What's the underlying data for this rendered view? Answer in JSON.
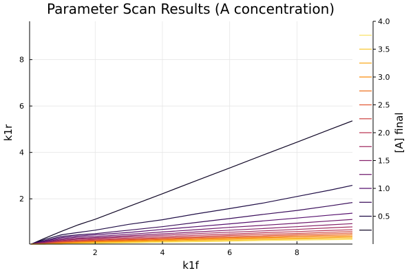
{
  "chart_data": {
    "type": "contour",
    "title": "Parameter Scan Results (A concentration)",
    "xlabel": "k1f",
    "ylabel": "k1r",
    "xlim": [
      0.05,
      9.65
    ],
    "ylim": [
      0.05,
      9.65
    ],
    "x_ticks": [
      2,
      4,
      6,
      8
    ],
    "y_ticks": [
      2,
      4,
      6,
      8
    ],
    "grid": true,
    "colorbar": {
      "label": "[A] final",
      "range": [
        0.0,
        4.0
      ],
      "ticks": [
        0.5,
        1.0,
        1.5,
        2.0,
        2.5,
        3.0,
        3.5,
        4.0
      ],
      "tick_labels": [
        "0.5",
        "1.0",
        "1.5",
        "2.0",
        "2.5",
        "3.0",
        "3.5",
        "4.0"
      ],
      "levels": [
        0.25,
        0.5,
        0.75,
        1.0,
        1.25,
        1.5,
        1.75,
        2.0,
        2.25,
        2.5,
        2.75,
        3.0,
        3.25,
        3.5,
        3.75
      ]
    },
    "contours": [
      {
        "level": 0.25,
        "points": [
          [
            0.1,
            0.0
          ],
          [
            0.5,
            0.3
          ],
          [
            1.0,
            0.6
          ],
          [
            1.5,
            0.88
          ],
          [
            2.0,
            1.12
          ],
          [
            3.0,
            1.67
          ],
          [
            4.0,
            2.22
          ],
          [
            5.0,
            2.78
          ],
          [
            6.0,
            3.33
          ],
          [
            7.0,
            3.89
          ],
          [
            8.0,
            4.44
          ],
          [
            9.0,
            5.0
          ],
          [
            9.65,
            5.36
          ]
        ]
      },
      {
        "level": 0.5,
        "points": [
          [
            0.1,
            0.0
          ],
          [
            0.5,
            0.25
          ],
          [
            1.0,
            0.45
          ],
          [
            1.5,
            0.55
          ],
          [
            2.0,
            0.65
          ],
          [
            3.0,
            0.9
          ],
          [
            4.0,
            1.1
          ],
          [
            5.0,
            1.35
          ],
          [
            6.0,
            1.58
          ],
          [
            7.0,
            1.82
          ],
          [
            8.0,
            2.1
          ],
          [
            9.0,
            2.38
          ],
          [
            9.65,
            2.58
          ]
        ]
      },
      {
        "level": 0.75,
        "points": [
          [
            0.1,
            0.0
          ],
          [
            0.5,
            0.2
          ],
          [
            1.0,
            0.38
          ],
          [
            1.5,
            0.45
          ],
          [
            2.0,
            0.5
          ],
          [
            3.0,
            0.65
          ],
          [
            4.0,
            0.8
          ],
          [
            5.0,
            0.98
          ],
          [
            6.0,
            1.15
          ],
          [
            7.0,
            1.33
          ],
          [
            8.0,
            1.5
          ],
          [
            9.0,
            1.7
          ],
          [
            9.65,
            1.84
          ]
        ]
      },
      {
        "level": 1.0,
        "points": [
          [
            0.1,
            0.0
          ],
          [
            0.5,
            0.17
          ],
          [
            1.0,
            0.33
          ],
          [
            1.5,
            0.4
          ],
          [
            2.0,
            0.45
          ],
          [
            3.0,
            0.55
          ],
          [
            4.0,
            0.68
          ],
          [
            5.0,
            0.8
          ],
          [
            6.0,
            0.92
          ],
          [
            7.0,
            1.05
          ],
          [
            8.0,
            1.17
          ],
          [
            9.0,
            1.3
          ],
          [
            9.65,
            1.38
          ]
        ]
      },
      {
        "level": 1.25,
        "points": [
          [
            0.1,
            0.0
          ],
          [
            0.5,
            0.14
          ],
          [
            1.0,
            0.28
          ],
          [
            1.5,
            0.35
          ],
          [
            2.0,
            0.38
          ],
          [
            3.0,
            0.47
          ],
          [
            4.0,
            0.57
          ],
          [
            5.0,
            0.67
          ],
          [
            6.0,
            0.77
          ],
          [
            7.0,
            0.86
          ],
          [
            8.0,
            0.95
          ],
          [
            9.0,
            1.05
          ],
          [
            9.65,
            1.11
          ]
        ]
      },
      {
        "level": 1.5,
        "points": [
          [
            0.1,
            0.0
          ],
          [
            0.5,
            0.12
          ],
          [
            1.0,
            0.24
          ],
          [
            1.5,
            0.3
          ],
          [
            2.0,
            0.33
          ],
          [
            3.0,
            0.41
          ],
          [
            4.0,
            0.49
          ],
          [
            5.0,
            0.57
          ],
          [
            6.0,
            0.65
          ],
          [
            7.0,
            0.72
          ],
          [
            8.0,
            0.8
          ],
          [
            9.0,
            0.88
          ],
          [
            9.65,
            0.93
          ]
        ]
      },
      {
        "level": 1.75,
        "points": [
          [
            0.1,
            0.0
          ],
          [
            0.5,
            0.1
          ],
          [
            1.0,
            0.2
          ],
          [
            1.5,
            0.26
          ],
          [
            2.0,
            0.29
          ],
          [
            3.0,
            0.36
          ],
          [
            4.0,
            0.43
          ],
          [
            5.0,
            0.5
          ],
          [
            6.0,
            0.56
          ],
          [
            7.0,
            0.62
          ],
          [
            8.0,
            0.68
          ],
          [
            9.0,
            0.75
          ],
          [
            9.65,
            0.79
          ]
        ]
      },
      {
        "level": 2.0,
        "points": [
          [
            0.1,
            0.0
          ],
          [
            0.5,
            0.09
          ],
          [
            1.0,
            0.17
          ],
          [
            1.5,
            0.22
          ],
          [
            2.0,
            0.25
          ],
          [
            3.0,
            0.31
          ],
          [
            4.0,
            0.37
          ],
          [
            5.0,
            0.43
          ],
          [
            6.0,
            0.48
          ],
          [
            7.0,
            0.54
          ],
          [
            8.0,
            0.59
          ],
          [
            9.0,
            0.64
          ],
          [
            9.65,
            0.67
          ]
        ]
      },
      {
        "level": 2.25,
        "points": [
          [
            0.1,
            0.0
          ],
          [
            0.5,
            0.08
          ],
          [
            1.0,
            0.15
          ],
          [
            1.5,
            0.19
          ],
          [
            2.0,
            0.22
          ],
          [
            3.0,
            0.27
          ],
          [
            4.0,
            0.32
          ],
          [
            5.0,
            0.37
          ],
          [
            6.0,
            0.42
          ],
          [
            7.0,
            0.47
          ],
          [
            8.0,
            0.51
          ],
          [
            9.0,
            0.56
          ],
          [
            9.65,
            0.59
          ]
        ]
      },
      {
        "level": 2.5,
        "points": [
          [
            0.1,
            0.0
          ],
          [
            0.5,
            0.07
          ],
          [
            1.0,
            0.13
          ],
          [
            1.5,
            0.17
          ],
          [
            2.0,
            0.19
          ],
          [
            3.0,
            0.24
          ],
          [
            4.0,
            0.28
          ],
          [
            5.0,
            0.33
          ],
          [
            6.0,
            0.37
          ],
          [
            7.0,
            0.41
          ],
          [
            8.0,
            0.45
          ],
          [
            9.0,
            0.49
          ],
          [
            9.65,
            0.52
          ]
        ]
      },
      {
        "level": 2.75,
        "points": [
          [
            0.1,
            0.0
          ],
          [
            0.5,
            0.06
          ],
          [
            1.0,
            0.11
          ],
          [
            1.5,
            0.14
          ],
          [
            2.0,
            0.17
          ],
          [
            3.0,
            0.21
          ],
          [
            4.0,
            0.25
          ],
          [
            5.0,
            0.29
          ],
          [
            6.0,
            0.33
          ],
          [
            7.0,
            0.36
          ],
          [
            8.0,
            0.4
          ],
          [
            9.0,
            0.43
          ],
          [
            9.65,
            0.46
          ]
        ]
      },
      {
        "level": 3.0,
        "points": [
          [
            0.1,
            0.0
          ],
          [
            0.5,
            0.05
          ],
          [
            1.0,
            0.09
          ],
          [
            1.5,
            0.12
          ],
          [
            2.0,
            0.15
          ],
          [
            3.0,
            0.18
          ],
          [
            4.0,
            0.22
          ],
          [
            5.0,
            0.25
          ],
          [
            6.0,
            0.29
          ],
          [
            7.0,
            0.32
          ],
          [
            8.0,
            0.35
          ],
          [
            9.0,
            0.38
          ],
          [
            9.65,
            0.4
          ]
        ]
      },
      {
        "level": 3.25,
        "points": [
          [
            0.1,
            0.0
          ],
          [
            0.5,
            0.04
          ],
          [
            1.0,
            0.07
          ],
          [
            1.5,
            0.1
          ],
          [
            2.0,
            0.12
          ],
          [
            3.0,
            0.15
          ],
          [
            4.0,
            0.19
          ],
          [
            5.0,
            0.22
          ],
          [
            6.0,
            0.25
          ],
          [
            7.0,
            0.28
          ],
          [
            8.0,
            0.3
          ],
          [
            9.0,
            0.33
          ],
          [
            9.65,
            0.35
          ]
        ]
      },
      {
        "level": 3.5,
        "points": [
          [
            0.1,
            0.0
          ],
          [
            0.5,
            0.03
          ],
          [
            1.0,
            0.05
          ],
          [
            1.5,
            0.08
          ],
          [
            2.0,
            0.1
          ],
          [
            3.0,
            0.13
          ],
          [
            4.0,
            0.16
          ],
          [
            5.0,
            0.18
          ],
          [
            6.0,
            0.21
          ],
          [
            7.0,
            0.24
          ],
          [
            8.0,
            0.26
          ],
          [
            9.0,
            0.28
          ],
          [
            9.65,
            0.3
          ]
        ]
      },
      {
        "level": 3.75,
        "points": [
          [
            0.1,
            0.0
          ],
          [
            0.5,
            0.02
          ],
          [
            1.0,
            0.04
          ],
          [
            1.5,
            0.06
          ],
          [
            2.0,
            0.08
          ],
          [
            3.0,
            0.1
          ],
          [
            4.0,
            0.13
          ],
          [
            5.0,
            0.15
          ],
          [
            6.0,
            0.17
          ],
          [
            7.0,
            0.2
          ],
          [
            8.0,
            0.22
          ],
          [
            9.0,
            0.24
          ],
          [
            9.65,
            0.25
          ]
        ]
      }
    ]
  }
}
